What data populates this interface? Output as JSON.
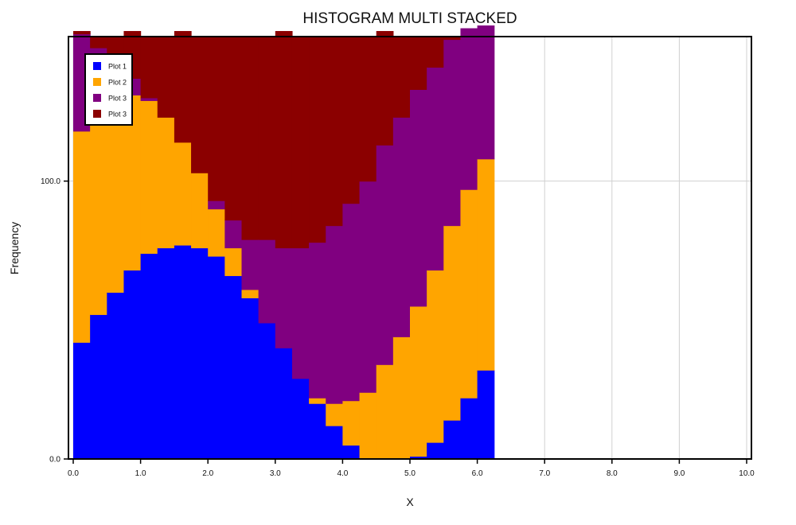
{
  "chart_data": {
    "type": "bar",
    "subtype": "stacked-histogram",
    "title": "HISTOGRAM MULTI STACKED",
    "xlabel": "X",
    "ylabel": "Frequency",
    "xlim": [
      0,
      10
    ],
    "ylim": [
      0,
      152
    ],
    "x_ticks": [
      "0.0",
      "1.0",
      "2.0",
      "3.0",
      "4.0",
      "5.0",
      "6.0",
      "7.0",
      "8.0",
      "9.0",
      "10.0"
    ],
    "y_ticks": [
      "0.0",
      "100.0"
    ],
    "grid": true,
    "legend_position": "top-left",
    "bin_width": 0.25,
    "x": [
      0.0,
      0.25,
      0.5,
      0.75,
      1.0,
      1.25,
      1.5,
      1.75,
      2.0,
      2.25,
      2.5,
      2.75,
      3.0,
      3.25,
      3.5,
      3.75,
      4.0,
      4.25,
      4.5,
      4.75,
      5.0,
      5.25,
      5.5,
      5.75,
      6.0
    ],
    "series": [
      {
        "name": "Plot 1",
        "color": "#0000ff",
        "values": [
          42,
          52,
          60,
          68,
          74,
          76,
          77,
          76,
          73,
          66,
          58,
          49,
          40,
          29,
          20,
          12,
          5,
          0,
          0,
          0,
          1,
          6,
          14,
          22,
          32
        ]
      },
      {
        "name": "Plot 2",
        "color": "#ffa500",
        "values": [
          76,
          76,
          71,
          63,
          55,
          47,
          37,
          27,
          17,
          10,
          3,
          0,
          0,
          0,
          2,
          8,
          16,
          24,
          34,
          44,
          54,
          62,
          70,
          75,
          76
        ]
      },
      {
        "name": "Plot 3",
        "color": "#800080",
        "values": [
          35,
          20,
          10,
          6,
          1,
          0,
          0,
          0,
          3,
          10,
          18,
          30,
          36,
          47,
          56,
          64,
          71,
          76,
          79,
          79,
          78,
          73,
          67,
          58,
          48
        ]
      },
      {
        "name": "Plot 3",
        "color": "#8b0000",
        "values": [
          1,
          4,
          11,
          17,
          22,
          29,
          40,
          49,
          59,
          66,
          73,
          73,
          78,
          76,
          74,
          68,
          60,
          52,
          41,
          29,
          19,
          11,
          1,
          0,
          0
        ]
      }
    ]
  }
}
